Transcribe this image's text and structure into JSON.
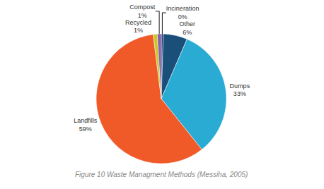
{
  "chart_data": {
    "type": "pie",
    "categories": [
      "Incineration",
      "Other",
      "Dumps",
      "Landfills",
      "Recycled",
      "Compost"
    ],
    "values": [
      0.5,
      6,
      33,
      59,
      1,
      1
    ],
    "value_labels": [
      "0%",
      "6%",
      "33%",
      "59%",
      "1%",
      "1%"
    ],
    "colors": [
      "#1C3F6E",
      "#1A4F7A",
      "#29ABD4",
      "#F05A28",
      "#C8C823",
      "#8B5EA7"
    ],
    "data_labels": true,
    "caption": "Figure 10 Waste Managment Methods (Messiha, 2005)"
  }
}
